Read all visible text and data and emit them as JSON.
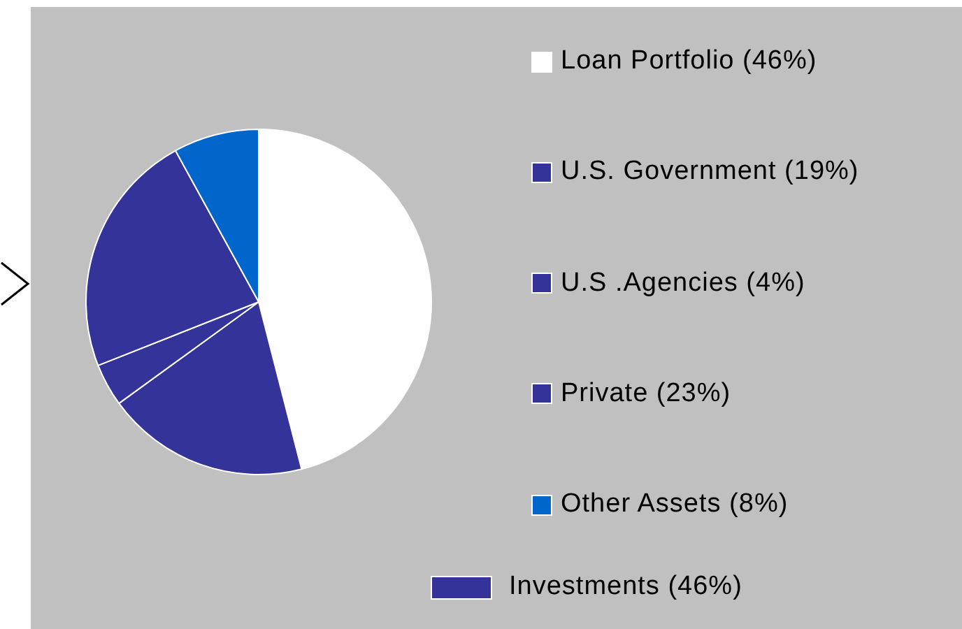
{
  "chart_data": {
    "type": "pie",
    "categories": [
      "Loan Portfolio (46%)",
      "U.S. Government (19%)",
      "U.S .Agencies (4%)",
      "Private (23%)",
      "Other Assets (8%)"
    ],
    "values": [
      46,
      19,
      4,
      23,
      8
    ],
    "colors": [
      "#ffffff",
      "#333399",
      "#333399",
      "#333399",
      "#0066cc"
    ],
    "legend": "right",
    "annotations": [
      "Investments (46%)"
    ]
  }
}
